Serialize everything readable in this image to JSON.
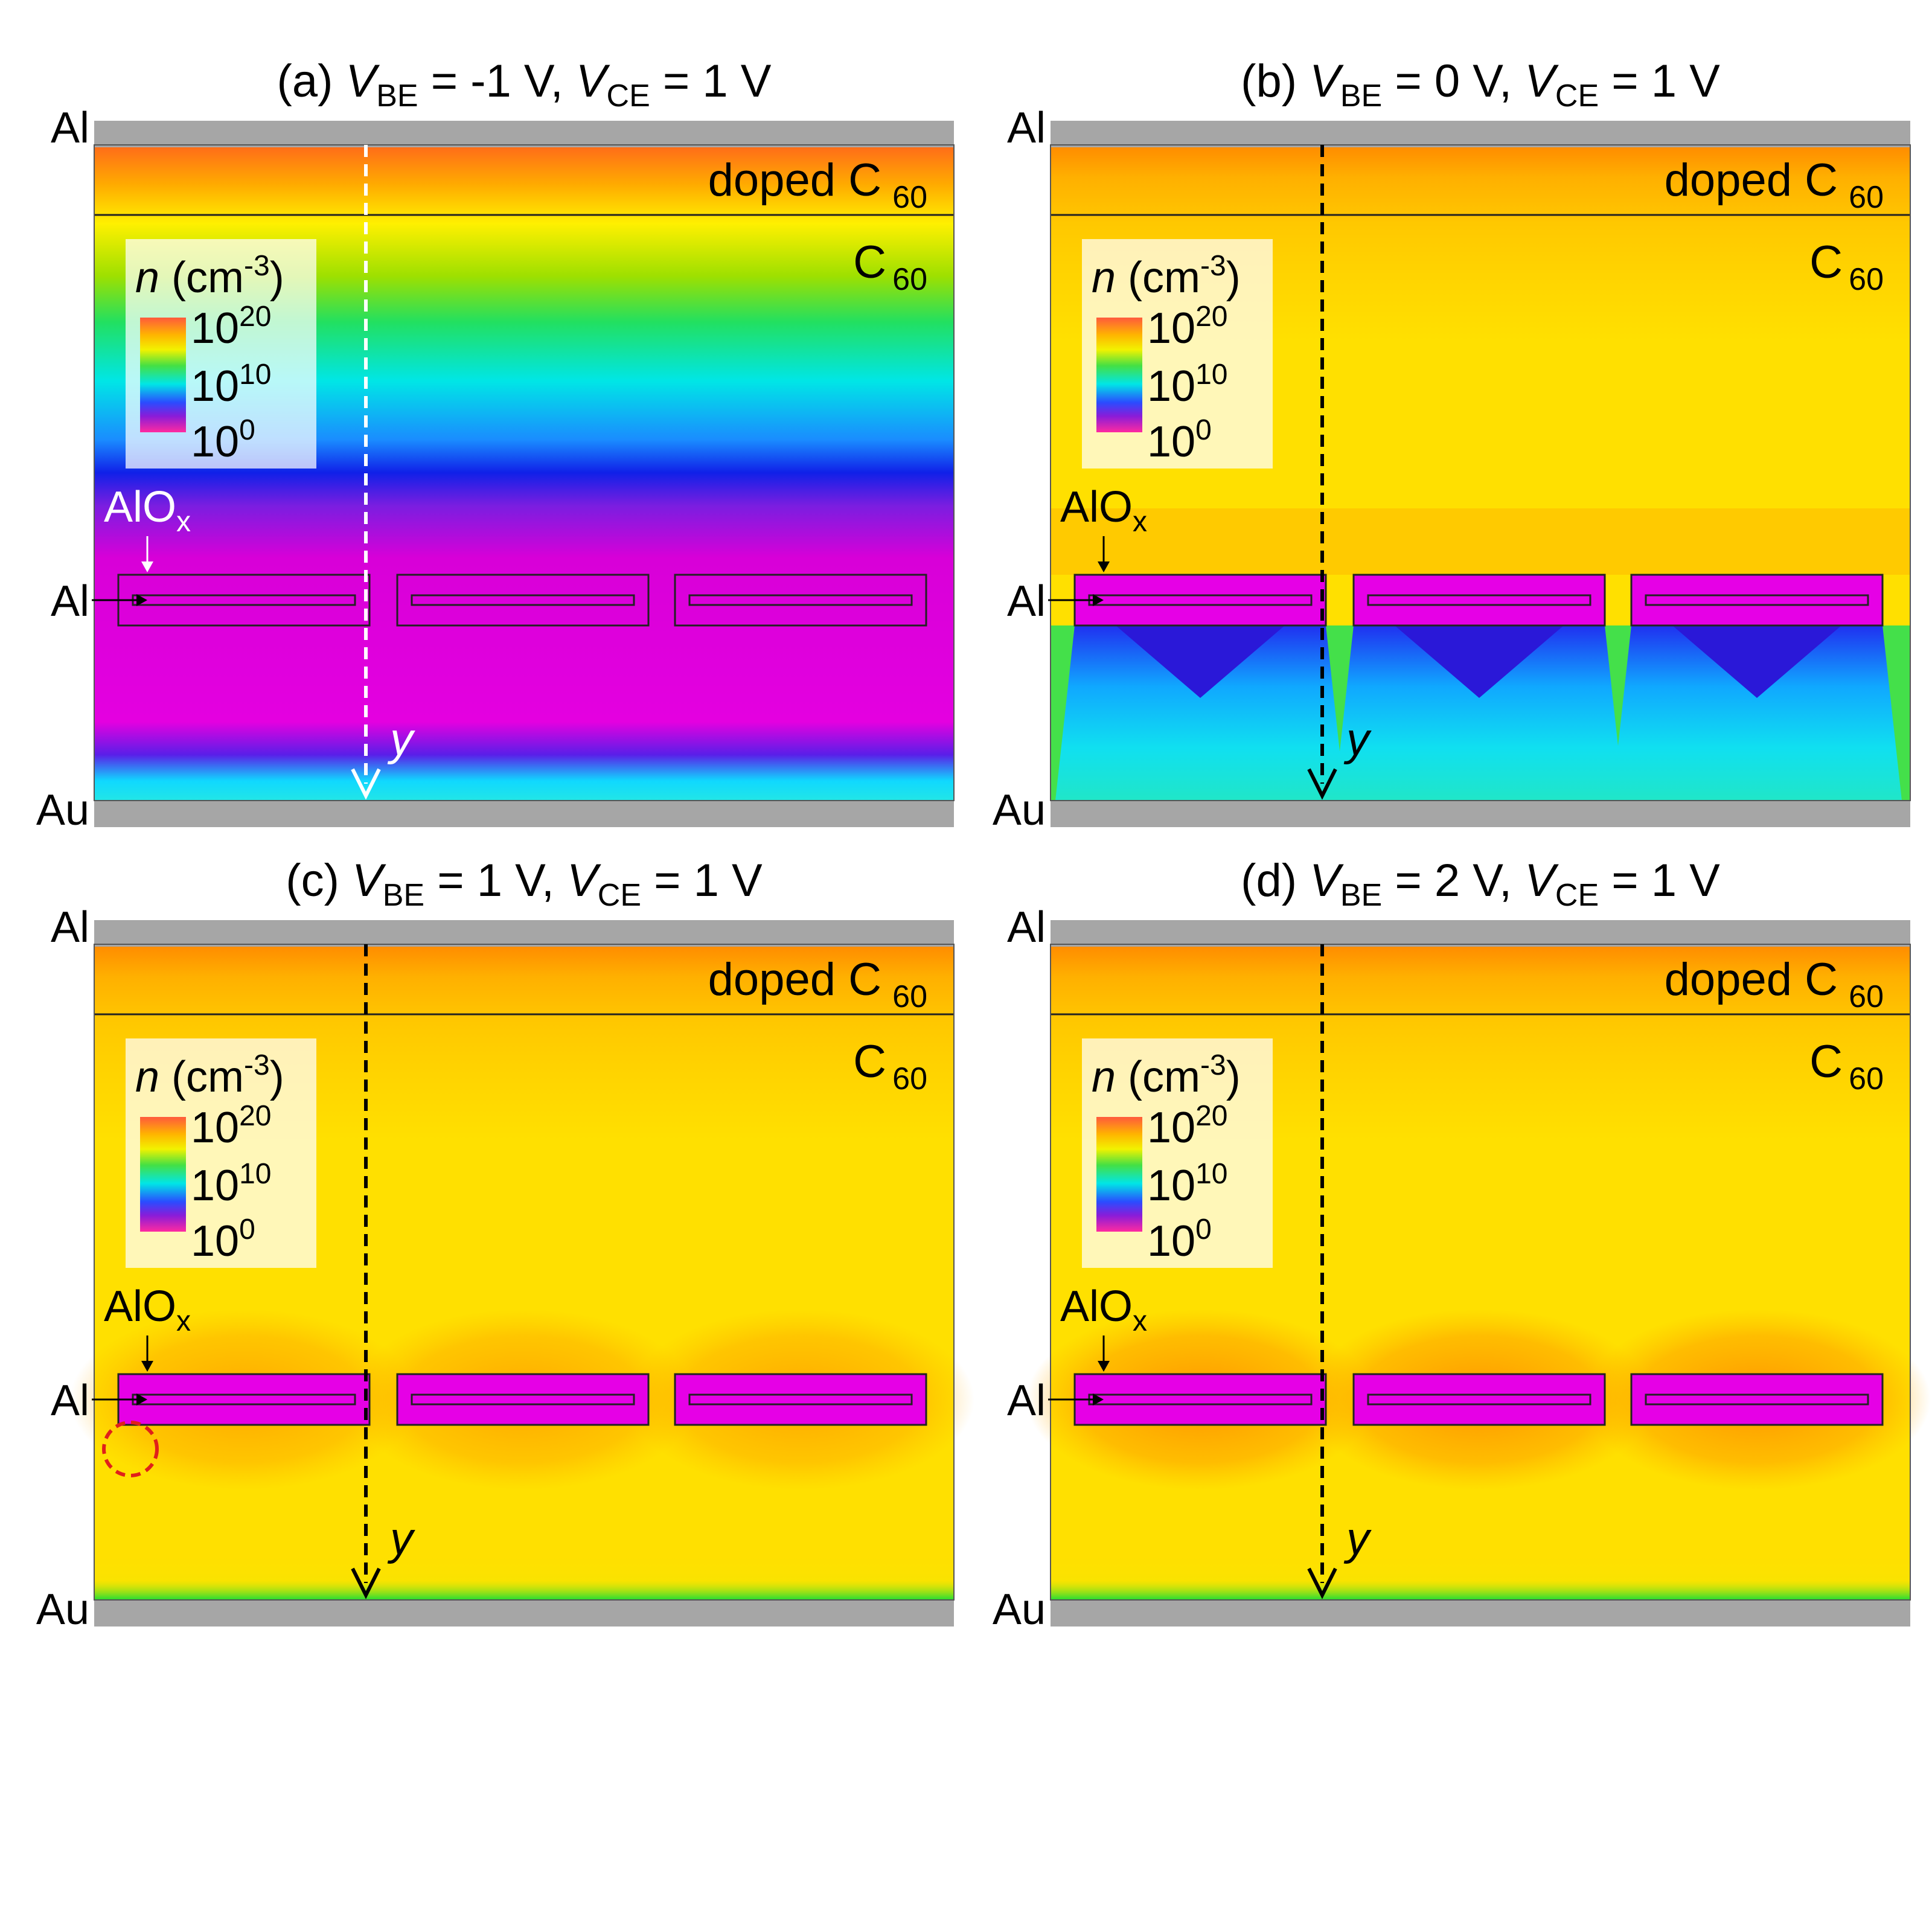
{
  "figure": {
    "panels": [
      {
        "id": "a",
        "title": {
          "prefix": "(a) ",
          "v1": "V",
          "s1": "BE",
          "mid": " = -1 V, ",
          "v2": "V",
          "s2": "CE",
          "end": " = 1 V"
        },
        "state": "depleted",
        "arrow_color": "#ffffff",
        "aiox_label_color": "#ffffff",
        "show_marker": false
      },
      {
        "id": "b",
        "title": {
          "prefix": "(b) ",
          "v1": "V",
          "s1": "BE",
          "mid": " = 0 V, ",
          "v2": "V",
          "s2": "CE",
          "end": " = 1 V"
        },
        "state": "v-shaped",
        "arrow_color": "#000000",
        "aiox_label_color": "#000000",
        "show_marker": false
      },
      {
        "id": "c",
        "title": {
          "prefix": "(c) ",
          "v1": "V",
          "s1": "BE",
          "mid": " = 1 V, ",
          "v2": "V",
          "s2": "CE",
          "end": " = 1 V"
        },
        "state": "accumulated",
        "arrow_color": "#000000",
        "aiox_label_color": "#000000",
        "show_marker": true
      },
      {
        "id": "d",
        "title": {
          "prefix": "(d) ",
          "v1": "V",
          "s1": "BE",
          "mid": " = 2 V, ",
          "v2": "V",
          "s2": "CE",
          "end": " = 1 V"
        },
        "state": "accumulated-strong",
        "arrow_color": "#000000",
        "aiox_label_color": "#000000",
        "show_marker": false
      }
    ],
    "labels": {
      "top_electrode": "Al",
      "base_electrode": "Al",
      "bottom_electrode": "Au",
      "doped_layer": "doped C",
      "doped_layer_sub": "60",
      "layer": "C",
      "layer_sub": "60",
      "oxide": "AlO",
      "oxide_sub": "x",
      "axis": "y"
    },
    "legend": {
      "quantity": "n",
      "unit_open": " (cm",
      "unit_exp": "-3",
      "unit_close": ")",
      "ticks": [
        {
          "base": "10",
          "exp": "20"
        },
        {
          "base": "10",
          "exp": "10"
        },
        {
          "base": "10",
          "exp": "0"
        }
      ]
    },
    "colors": {
      "electrode": "#a6a6a6",
      "oxide_fill": "#e600e6",
      "marker": "#e0201a"
    }
  }
}
